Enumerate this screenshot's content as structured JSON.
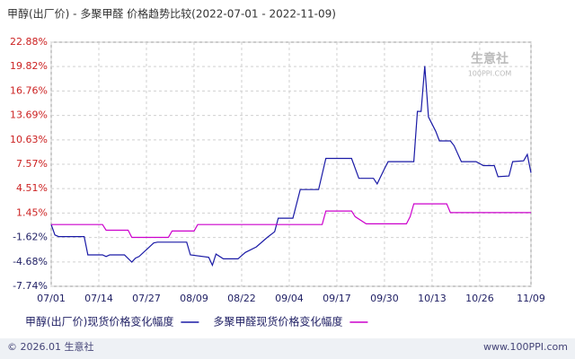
{
  "chart_data": {
    "type": "line",
    "title": "甲醇(出厂价) - 多聚甲醛 价格趋势比较(2022-07-01 - 2022-11-09)",
    "xticks": [
      "07/01",
      "07/14",
      "07/27",
      "08/09",
      "08/22",
      "09/04",
      "09/17",
      "09/30",
      "10/13",
      "10/26",
      "11/09"
    ],
    "ylim": [
      -7.74,
      22.88
    ],
    "yticks": [
      {
        "value": -7.74,
        "label": "-7.74%"
      },
      {
        "value": -4.68,
        "label": "-4.68%"
      },
      {
        "value": -1.62,
        "label": "-1.62%"
      },
      {
        "value": 1.45,
        "label": "1.45%"
      },
      {
        "value": 4.51,
        "label": "4.51%"
      },
      {
        "value": 7.57,
        "label": "7.57%"
      },
      {
        "value": 10.63,
        "label": "10.63%"
      },
      {
        "value": 13.69,
        "label": "13.69%"
      },
      {
        "value": 16.76,
        "label": "16.76%"
      },
      {
        "value": 19.82,
        "label": "19.82%"
      },
      {
        "value": 22.88,
        "label": "22.88%"
      }
    ],
    "grid": true,
    "series": [
      {
        "name": "甲醇(出厂价)现货价格变化幅度",
        "color": "#1a1aa6",
        "x": [
          "07/01",
          "07/02",
          "07/03",
          "07/10",
          "07/11",
          "07/15",
          "07/16",
          "07/17",
          "07/21",
          "07/23",
          "07/24",
          "07/25",
          "07/29",
          "07/30",
          "08/07",
          "08/08",
          "08/13",
          "08/14",
          "08/15",
          "08/17",
          "08/21",
          "08/23",
          "08/26",
          "08/29",
          "08/31",
          "09/01",
          "09/05",
          "09/07",
          "09/12",
          "09/14",
          "09/21",
          "09/23",
          "09/27",
          "09/28",
          "09/30",
          "10/01",
          "10/08",
          "10/09",
          "10/10",
          "10/11",
          "10/12",
          "10/14",
          "10/15",
          "10/18",
          "10/19",
          "10/21",
          "10/25",
          "10/27",
          "10/30",
          "10/31",
          "11/03",
          "11/04",
          "11/07",
          "11/08",
          "11/09"
        ],
        "values": [
          0,
          -1.3,
          -1.5,
          -1.5,
          -3.8,
          -3.8,
          -4.0,
          -3.8,
          -3.8,
          -4.7,
          -4.2,
          -4.0,
          -2.3,
          -2.2,
          -2.2,
          -3.8,
          -4.1,
          -5.1,
          -3.7,
          -4.3,
          -4.3,
          -3.5,
          -2.8,
          -1.6,
          -0.9,
          0.8,
          0.8,
          4.4,
          4.4,
          8.3,
          8.3,
          5.8,
          5.8,
          5.1,
          7.0,
          7.9,
          7.9,
          14.2,
          14.2,
          19.9,
          13.5,
          11.7,
          10.5,
          10.5,
          9.9,
          7.9,
          7.9,
          7.4,
          7.4,
          6.0,
          6.1,
          7.9,
          8.0,
          8.8,
          6.5
        ]
      },
      {
        "name": "多聚甲醛现货价格变化幅度",
        "color": "#cc00cc",
        "x": [
          "07/01",
          "07/15",
          "07/16",
          "07/22",
          "07/23",
          "08/02",
          "08/03",
          "08/09",
          "08/10",
          "09/13",
          "09/14",
          "09/21",
          "09/22",
          "09/25",
          "10/06",
          "10/07",
          "10/08",
          "10/17",
          "10/18",
          "11/09"
        ],
        "values": [
          0,
          0,
          -0.7,
          -0.7,
          -1.6,
          -1.6,
          -0.8,
          -0.8,
          0,
          0,
          1.7,
          1.7,
          1.0,
          0.1,
          0.1,
          1.0,
          2.6,
          2.6,
          1.5,
          1.5
        ]
      }
    ]
  },
  "watermark": {
    "name": "生意社",
    "url": "100PPI.COM"
  },
  "footer": {
    "copyright": "© 2026.01 生意社",
    "site": "www.100PPI.com"
  }
}
